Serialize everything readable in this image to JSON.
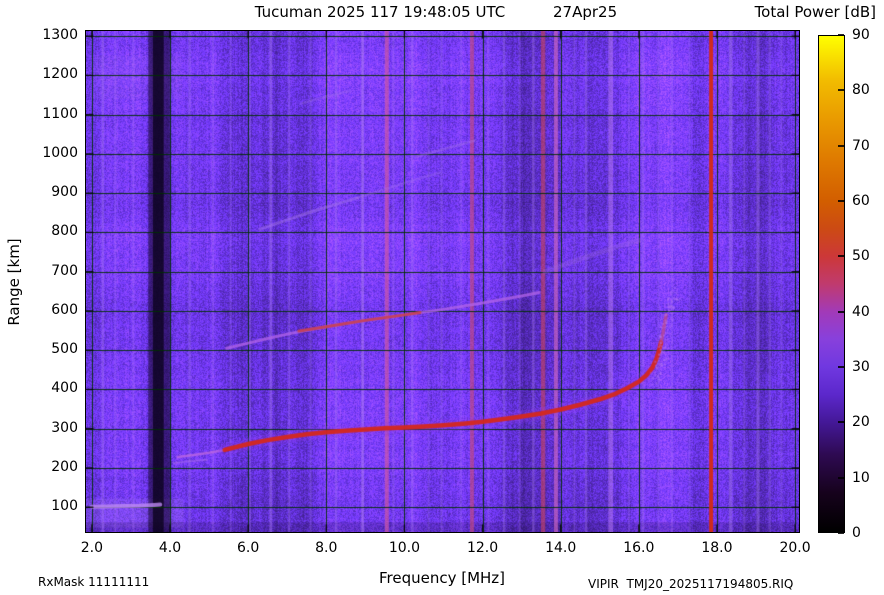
{
  "header": {
    "title_main": "Tucuman 2025 117 19:48:05 UTC",
    "title_date": "27Apr25",
    "colorbar_title": "Total Power [dB]"
  },
  "footer": {
    "rx_mask": "RxMask 11111111",
    "file_label": "VIPIR  TMJ20_2025117194805.RIQ"
  },
  "chart_data": {
    "type": "heatmap",
    "title": "Tucuman 2025 117 19:48:05 UTC   27Apr25",
    "xlabel": "Frequency [MHz]",
    "ylabel": "Range [km]",
    "xlim": [
      1.85,
      20.1
    ],
    "ylim": [
      37,
      1313
    ],
    "x_ticks": [
      2,
      4,
      6,
      8,
      10,
      12,
      14,
      16,
      18,
      20
    ],
    "x_tick_labels": [
      "2.0",
      "4.0",
      "6.0",
      "8.0",
      "10.0",
      "12.0",
      "14.0",
      "16.0",
      "18.0",
      "20.0"
    ],
    "y_ticks": [
      100,
      200,
      300,
      400,
      500,
      600,
      700,
      800,
      900,
      1000,
      1100,
      1200,
      1300
    ],
    "grid": true,
    "grid_color": "#003000",
    "legend": "none",
    "background": {
      "description": "purple galactic/receiver noise floor ~20-25 dB with vertical banding",
      "base_rgb": [
        104,
        52,
        228
      ]
    },
    "colorbar": {
      "label": "Total Power [dB]",
      "min": 0,
      "max": 90,
      "ticks": [
        0,
        10,
        20,
        30,
        40,
        50,
        60,
        70,
        80,
        90
      ],
      "stops": [
        {
          "value": 0,
          "color": "#000000"
        },
        {
          "value": 7,
          "color": "#16021c"
        },
        {
          "value": 14,
          "color": "#2e0a52"
        },
        {
          "value": 20,
          "color": "#441898"
        },
        {
          "value": 25,
          "color": "#5c28cc"
        },
        {
          "value": 30,
          "color": "#7038e0"
        },
        {
          "value": 35,
          "color": "#8840dc"
        },
        {
          "value": 40,
          "color": "#a23ab8"
        },
        {
          "value": 45,
          "color": "#c03a6e"
        },
        {
          "value": 50,
          "color": "#cc3838"
        },
        {
          "value": 55,
          "color": "#cc4a14"
        },
        {
          "value": 60,
          "color": "#d25e00"
        },
        {
          "value": 67,
          "color": "#de7800"
        },
        {
          "value": 74,
          "color": "#e89600"
        },
        {
          "value": 82,
          "color": "#f2bc00"
        },
        {
          "value": 90,
          "color": "#ffff00"
        }
      ]
    },
    "regions": [
      {
        "name": "bright-low-range-left",
        "x": [
          1.85,
          4.35
        ],
        "y": [
          48,
          122
        ],
        "color": "#b488f4",
        "alpha": 0.2
      },
      {
        "name": "dark-bottom-strip",
        "x": [
          1.85,
          20.1
        ],
        "y": [
          37,
          62
        ],
        "color": "#1c0a44",
        "alpha": 0.2
      },
      {
        "name": "faint-topleft-texture",
        "x": [
          2.0,
          4.3
        ],
        "y": [
          1140,
          1250
        ],
        "color": "#9a6ae8",
        "alpha": 0.12
      }
    ],
    "rfi_stripes": [
      {
        "freq": 3.72,
        "width": 0.55,
        "color": "#0e0220",
        "alpha": 0.55,
        "layer": "under",
        "note": "low-power dark band"
      },
      {
        "freq": 3.7,
        "width": 0.28,
        "color": "#0a0118",
        "alpha": 0.75,
        "layer": "under",
        "note": "dark band core"
      },
      {
        "freq": 2.28,
        "width": 0.06,
        "color": "#a272f2",
        "alpha": 0.45,
        "layer": "under"
      },
      {
        "freq": 2.6,
        "width": 0.05,
        "color": "#a272f2",
        "alpha": 0.3,
        "layer": "under"
      },
      {
        "freq": 3.06,
        "width": 0.05,
        "color": "#a272f2",
        "alpha": 0.3,
        "layer": "under"
      },
      {
        "freq": 4.5,
        "width": 0.06,
        "color": "#a272f2",
        "alpha": 0.4,
        "layer": "under"
      },
      {
        "freq": 5.1,
        "width": 0.05,
        "color": "#a272f2",
        "alpha": 0.3,
        "layer": "under"
      },
      {
        "freq": 5.55,
        "width": 0.05,
        "color": "#a272f2",
        "alpha": 0.3,
        "layer": "under"
      },
      {
        "freq": 6.05,
        "width": 0.05,
        "color": "#a272f2",
        "alpha": 0.35,
        "layer": "under"
      },
      {
        "freq": 6.58,
        "width": 0.07,
        "color": "#a272f2",
        "alpha": 0.5,
        "layer": "under"
      },
      {
        "freq": 7.05,
        "width": 0.05,
        "color": "#a272f2",
        "alpha": 0.4,
        "layer": "under"
      },
      {
        "freq": 7.6,
        "width": 0.05,
        "color": "#a272f2",
        "alpha": 0.3,
        "layer": "under"
      },
      {
        "freq": 8.25,
        "width": 0.06,
        "color": "#a272f2",
        "alpha": 0.4,
        "layer": "under"
      },
      {
        "freq": 8.93,
        "width": 0.07,
        "color": "#ae7cf4",
        "alpha": 0.55,
        "layer": "under"
      },
      {
        "freq": 9.55,
        "width": 0.1,
        "color": "#cf58a8",
        "alpha": 0.7,
        "layer": "under"
      },
      {
        "freq": 9.72,
        "width": 0.05,
        "color": "#a272f2",
        "alpha": 0.35,
        "layer": "under"
      },
      {
        "freq": 10.2,
        "width": 0.06,
        "color": "#a272f2",
        "alpha": 0.4,
        "layer": "under"
      },
      {
        "freq": 10.62,
        "width": 0.05,
        "color": "#a272f2",
        "alpha": 0.3,
        "layer": "under"
      },
      {
        "freq": 10.95,
        "width": 0.05,
        "color": "#a272f2",
        "alpha": 0.35,
        "layer": "under"
      },
      {
        "freq": 11.45,
        "width": 0.05,
        "color": "#a272f2",
        "alpha": 0.3,
        "layer": "under"
      },
      {
        "freq": 11.73,
        "width": 0.1,
        "color": "#c84c80",
        "alpha": 0.65,
        "layer": "under"
      },
      {
        "freq": 12.15,
        "width": 0.05,
        "color": "#a272f2",
        "alpha": 0.3,
        "layer": "under"
      },
      {
        "freq": 12.55,
        "width": 0.06,
        "color": "#a272f2",
        "alpha": 0.4,
        "layer": "under"
      },
      {
        "freq": 12.95,
        "width": 0.05,
        "color": "#a272f2",
        "alpha": 0.3,
        "layer": "under"
      },
      {
        "freq": 13.3,
        "width": 0.06,
        "color": "#a272f2",
        "alpha": 0.45,
        "layer": "under"
      },
      {
        "freq": 13.55,
        "width": 0.11,
        "color": "#cc4458",
        "alpha": 0.6,
        "layer": "under"
      },
      {
        "freq": 13.88,
        "width": 0.1,
        "color": "#d068c0",
        "alpha": 0.65,
        "layer": "under"
      },
      {
        "freq": 14.35,
        "width": 0.05,
        "color": "#a272f2",
        "alpha": 0.3,
        "layer": "under"
      },
      {
        "freq": 14.65,
        "width": 0.06,
        "color": "#a272f2",
        "alpha": 0.4,
        "layer": "under"
      },
      {
        "freq": 15.28,
        "width": 0.12,
        "color": "#b87cf0",
        "alpha": 0.5,
        "layer": "under"
      },
      {
        "freq": 15.75,
        "width": 0.05,
        "color": "#a272f2",
        "alpha": 0.3,
        "layer": "under"
      },
      {
        "freq": 16.1,
        "width": 0.06,
        "color": "#a272f2",
        "alpha": 0.4,
        "layer": "under"
      },
      {
        "freq": 16.5,
        "width": 0.05,
        "color": "#a272f2",
        "alpha": 0.3,
        "layer": "under"
      },
      {
        "freq": 16.85,
        "width": 0.05,
        "color": "#a272f2",
        "alpha": 0.3,
        "layer": "under"
      },
      {
        "freq": 17.3,
        "width": 0.05,
        "color": "#a272f2",
        "alpha": 0.28,
        "layer": "under"
      },
      {
        "freq": 17.85,
        "width": 0.1,
        "color": "#d62a12",
        "alpha": 0.95,
        "layer": "over",
        "note": "strong broadcast RFI line"
      },
      {
        "freq": 18.35,
        "width": 0.09,
        "color": "#a87af0",
        "alpha": 0.45,
        "layer": "under"
      },
      {
        "freq": 18.7,
        "width": 0.05,
        "color": "#a272f2",
        "alpha": 0.3,
        "layer": "under"
      },
      {
        "freq": 19.05,
        "width": 0.08,
        "color": "#a87af0",
        "alpha": 0.4,
        "layer": "under"
      },
      {
        "freq": 19.35,
        "width": 0.06,
        "color": "#a272f2",
        "alpha": 0.32,
        "layer": "under"
      },
      {
        "freq": 19.65,
        "width": 0.05,
        "color": "#a272f2",
        "alpha": 0.3,
        "layer": "under"
      }
    ],
    "traces": [
      {
        "name": "e-region-echo",
        "approx_power_db": 32,
        "color": "#bd8af2",
        "width": 4,
        "alpha": 0.8,
        "points": [
          [
            2.0,
            101
          ],
          [
            2.4,
            102
          ],
          [
            2.8,
            103
          ],
          [
            3.2,
            104
          ],
          [
            3.6,
            106
          ],
          [
            3.75,
            107
          ]
        ]
      },
      {
        "name": "f-hop1-leading-lower",
        "approx_power_db": 28,
        "color": "#b070e8",
        "width": 2,
        "alpha": 0.45,
        "points": [
          [
            4.1,
            213
          ],
          [
            4.5,
            217
          ],
          [
            4.95,
            221
          ]
        ]
      },
      {
        "name": "f-hop1-leading",
        "approx_power_db": 34,
        "color": "#c06ae0",
        "width": 2.5,
        "alpha": 0.75,
        "points": [
          [
            4.2,
            228
          ],
          [
            4.6,
            233
          ],
          [
            5.0,
            239
          ],
          [
            5.4,
            246
          ]
        ]
      },
      {
        "name": "f-hop1-main",
        "approx_power_db": 55,
        "color": "#d5281c",
        "width": 4.5,
        "alpha": 0.95,
        "glow": "#8c3cf0",
        "points": [
          [
            5.4,
            246
          ],
          [
            6.0,
            261
          ],
          [
            6.5,
            271
          ],
          [
            7.0,
            279
          ],
          [
            7.5,
            286
          ],
          [
            8.0,
            291
          ],
          [
            8.5,
            295
          ],
          [
            9.0,
            298
          ],
          [
            9.5,
            301
          ],
          [
            10.0,
            303
          ],
          [
            10.5,
            306
          ],
          [
            11.0,
            309
          ],
          [
            11.5,
            313
          ],
          [
            12.0,
            318
          ],
          [
            12.5,
            324
          ],
          [
            13.0,
            331
          ],
          [
            13.5,
            339
          ],
          [
            14.0,
            349
          ],
          [
            14.5,
            361
          ],
          [
            15.0,
            375
          ],
          [
            15.4,
            389
          ],
          [
            15.7,
            403
          ],
          [
            16.0,
            420
          ],
          [
            16.2,
            437
          ],
          [
            16.35,
            456
          ],
          [
            16.45,
            478
          ],
          [
            16.52,
            500
          ],
          [
            16.57,
            520
          ]
        ]
      },
      {
        "name": "f-hop1-asymptote-fade",
        "approx_power_db": 42,
        "color": "#c04880",
        "width": 3.5,
        "alpha": 0.7,
        "points": [
          [
            16.57,
            520
          ],
          [
            16.62,
            545
          ],
          [
            16.66,
            568
          ],
          [
            16.7,
            590
          ]
        ]
      },
      {
        "name": "spread-f-scatter",
        "type": "dots",
        "approx_power_db": 30,
        "color": "#b678f2",
        "alpha": 0.6,
        "size": 2,
        "density": 10,
        "spread": [
          0.14,
          16
        ],
        "points": [
          [
            16.42,
            430
          ],
          [
            16.5,
            460
          ],
          [
            16.56,
            490
          ],
          [
            16.62,
            520
          ],
          [
            16.66,
            548
          ],
          [
            16.7,
            575
          ],
          [
            16.76,
            600
          ],
          [
            16.84,
            625
          ],
          [
            16.92,
            645
          ]
        ]
      },
      {
        "name": "f-hop2",
        "approx_power_db": 36,
        "color": "#b466e8",
        "width": 3,
        "alpha": 0.75,
        "points": [
          [
            5.45,
            505
          ],
          [
            6.0,
            518
          ],
          [
            6.5,
            530
          ],
          [
            7.0,
            541
          ],
          [
            7.5,
            551
          ],
          [
            8.0,
            560
          ],
          [
            8.5,
            568
          ],
          [
            9.0,
            576
          ],
          [
            9.5,
            583
          ],
          [
            10.0,
            590
          ],
          [
            10.5,
            597
          ],
          [
            11.0,
            604
          ],
          [
            11.5,
            612
          ],
          [
            12.0,
            620
          ],
          [
            12.5,
            629
          ],
          [
            13.0,
            638
          ],
          [
            13.45,
            647
          ]
        ]
      },
      {
        "name": "f-hop2-core",
        "approx_power_db": 47,
        "color": "#cc3c3c",
        "width": 3,
        "alpha": 0.8,
        "points": [
          [
            7.3,
            549
          ],
          [
            8.0,
            560
          ],
          [
            8.5,
            568
          ],
          [
            9.0,
            576
          ],
          [
            9.5,
            583
          ],
          [
            10.0,
            590
          ],
          [
            10.4,
            596
          ]
        ]
      },
      {
        "name": "oblique-streak-760km",
        "approx_power_db": 30,
        "color": "#9a64e2",
        "width": 5,
        "alpha": 0.35,
        "points": [
          [
            13.6,
            700
          ],
          [
            14.2,
            722
          ],
          [
            14.8,
            742
          ],
          [
            15.4,
            762
          ],
          [
            16.0,
            780
          ]
        ]
      },
      {
        "name": "f-hop3",
        "approx_power_db": 30,
        "color": "#a472ea",
        "width": 3,
        "alpha": 0.5,
        "points": [
          [
            6.3,
            808
          ],
          [
            7.0,
            832
          ],
          [
            7.6,
            852
          ],
          [
            8.2,
            870
          ],
          [
            8.8,
            888
          ]
        ]
      },
      {
        "name": "f-hop3-extension",
        "approx_power_db": 27,
        "color": "#a472ea",
        "width": 2.5,
        "alpha": 0.32,
        "points": [
          [
            8.8,
            888
          ],
          [
            9.5,
            910
          ],
          [
            10.2,
            932
          ],
          [
            10.9,
            952
          ]
        ]
      },
      {
        "name": "faint-streak-1000km",
        "approx_power_db": 27,
        "color": "#a472ea",
        "width": 2.5,
        "alpha": 0.4,
        "points": [
          [
            10.3,
            993
          ],
          [
            11.0,
            1012
          ],
          [
            11.8,
            1034
          ]
        ]
      },
      {
        "name": "faint-streak-1150km",
        "approx_power_db": 26,
        "color": "#a472ea",
        "width": 2.5,
        "alpha": 0.32,
        "points": [
          [
            7.35,
            1128
          ],
          [
            8.0,
            1146
          ],
          [
            8.6,
            1160
          ]
        ]
      }
    ]
  }
}
